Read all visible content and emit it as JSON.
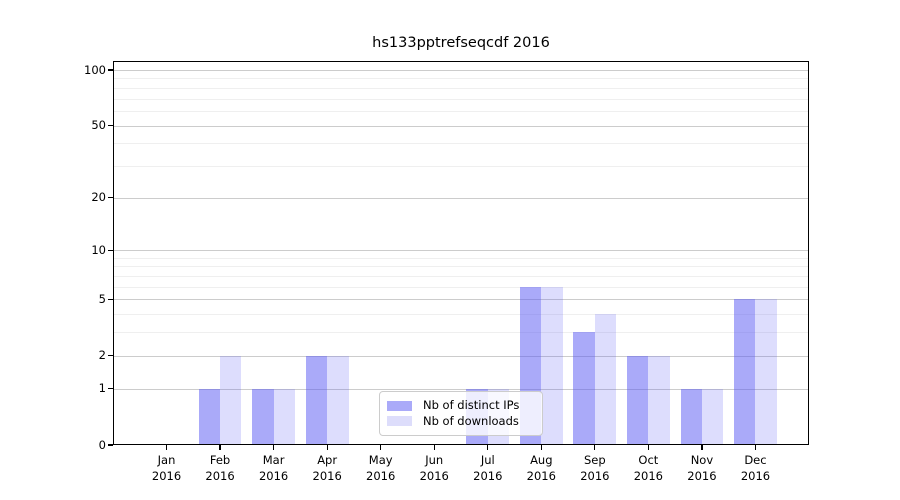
{
  "chart_data": {
    "type": "bar",
    "title": "hs133pptrefseqcdf 2016",
    "categories": [
      "Jan 2016",
      "Feb 2016",
      "Mar 2016",
      "Apr 2016",
      "May 2016",
      "Jun 2016",
      "Jul 2016",
      "Aug 2016",
      "Sep 2016",
      "Oct 2016",
      "Nov 2016",
      "Dec 2016"
    ],
    "series": [
      {
        "name": "Nb of distinct IPs",
        "values": [
          0,
          1,
          1,
          2,
          0,
          0,
          1,
          6,
          3,
          2,
          1,
          5
        ],
        "bar_color": "rgba(86,86,244,0.5)",
        "swatch_color": "#aaaaf9"
      },
      {
        "name": "Nb of downloads",
        "values": [
          0,
          2,
          1,
          2,
          0,
          0,
          1,
          6,
          4,
          2,
          1,
          5
        ],
        "bar_color": "rgba(86,86,244,0.2)",
        "swatch_color": "#ddddfb"
      }
    ],
    "y_axis": {
      "scale": "log1p",
      "ticks": [
        0,
        1,
        2,
        5,
        10,
        20,
        50,
        100
      ],
      "minor_ticks": [
        3,
        4,
        6,
        7,
        8,
        9,
        30,
        40,
        60,
        70,
        80,
        90
      ],
      "ylim": [
        0,
        112
      ]
    },
    "x_axis": {
      "year_row": "2016"
    },
    "legend": {
      "position": "lower center"
    },
    "colors": {
      "grid_major": "#cccccc",
      "grid_minor": "#efefef",
      "spine": "#000000",
      "text": "#000000"
    }
  }
}
